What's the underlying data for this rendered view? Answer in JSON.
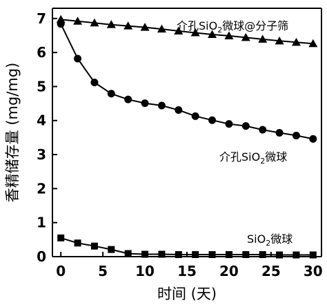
{
  "chart_data": {
    "type": "line",
    "xlabel": "时间 (天)",
    "ylabel": "香精储存量 (mg/mg)",
    "xlim": [
      -1,
      31
    ],
    "ylim": [
      0,
      7.3
    ],
    "xticks": [
      "0",
      "5",
      "10",
      "15",
      "20",
      "25",
      "30"
    ],
    "yticks": [
      "0",
      "1",
      "2",
      "3",
      "4",
      "5",
      "6",
      "7"
    ],
    "grid": false,
    "x": [
      0,
      2,
      4,
      6,
      8,
      10,
      12,
      14,
      16,
      18,
      20,
      22,
      24,
      26,
      28,
      30
    ],
    "series": [
      {
        "name": "介孔SiO₂微球@分子筛",
        "label_parts": [
          "介孔SiO",
          "2",
          "微球@分子筛"
        ],
        "marker": "triangle",
        "values": [
          6.97,
          6.92,
          6.87,
          6.82,
          6.78,
          6.74,
          6.69,
          6.63,
          6.58,
          6.53,
          6.49,
          6.44,
          6.39,
          6.34,
          6.3,
          6.26
        ]
      },
      {
        "name": "介孔SiO₂微球",
        "label_parts": [
          "介孔SiO",
          "2",
          "微球"
        ],
        "marker": "circle",
        "values": [
          6.84,
          5.82,
          5.12,
          4.79,
          4.62,
          4.51,
          4.44,
          4.31,
          4.13,
          4.01,
          3.9,
          3.84,
          3.73,
          3.64,
          3.56,
          3.46
        ]
      },
      {
        "name": "SiO₂微球",
        "label_parts": [
          "SiO",
          "2",
          "微球"
        ],
        "marker": "square",
        "values": [
          0.55,
          0.4,
          0.31,
          0.21,
          0.09,
          0.07,
          0.07,
          0.06,
          0.06,
          0.06,
          0.06,
          0.06,
          0.06,
          0.05,
          0.05,
          0.05
        ]
      }
    ]
  }
}
